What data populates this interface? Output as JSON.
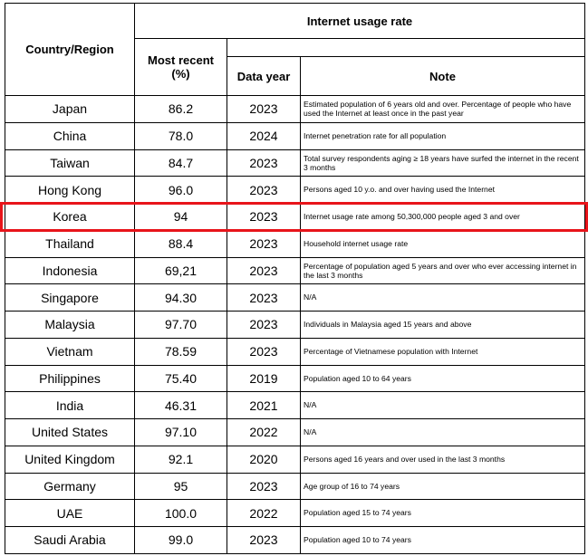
{
  "header": {
    "country": "Country/Region",
    "group": "Internet usage rate",
    "recent": "Most recent\n(%)",
    "year": "Data year",
    "note": "Note"
  },
  "table": {
    "rows": [
      [
        "Japan",
        "86.2",
        "2023",
        "Estimated population of 6 years old and over. Percentage of people who have used the Internet at least once in the past year"
      ],
      [
        "China",
        "78.0",
        "2024",
        "Internet penetration rate for all population"
      ],
      [
        "Taiwan",
        "84.7",
        "2023",
        "Total survey respondents aging ≥ 18 years have surfed the internet in the recent 3 months"
      ],
      [
        "Hong Kong",
        "96.0",
        "2023",
        "Persons aged 10 y.o. and over having used the Internet"
      ],
      [
        "Korea",
        "94",
        "2023",
        "Internet usage rate among 50,300,000 people aged 3 and over"
      ],
      [
        "Thailand",
        "88.4",
        "2023",
        "Household internet usage rate"
      ],
      [
        "Indonesia",
        "69,21",
        "2023",
        "Percentage of population aged 5 years and over who ever accessing internet in the last 3 months"
      ],
      [
        "Singapore",
        "94.30",
        "2023",
        "N/A"
      ],
      [
        "Malaysia",
        "97.70",
        "2023",
        "Individuals in Malaysia aged 15 years and above"
      ],
      [
        "Vietnam",
        "78.59",
        "2023",
        "Percentage of Vietnamese population with Internet"
      ],
      [
        "Philippines",
        "75.40",
        "2019",
        "Population aged 10 to 64 years"
      ],
      [
        "India",
        "46.31",
        "2021",
        "N/A"
      ],
      [
        "United States",
        "97.10",
        "2022",
        "N/A"
      ],
      [
        "United Kingdom",
        "92.1",
        "2020",
        "Persons aged 16 years and over used in the last 3 months"
      ],
      [
        "Germany",
        "95",
        "2023",
        "Age group of 16 to 74 years"
      ],
      [
        "UAE",
        "100.0",
        "2022",
        "Population  aged 15 to 74 years"
      ],
      [
        "Saudi Arabia",
        "99.0",
        "2023",
        "Population aged 10 to 74 years"
      ]
    ],
    "highlight_row": 4
  }
}
